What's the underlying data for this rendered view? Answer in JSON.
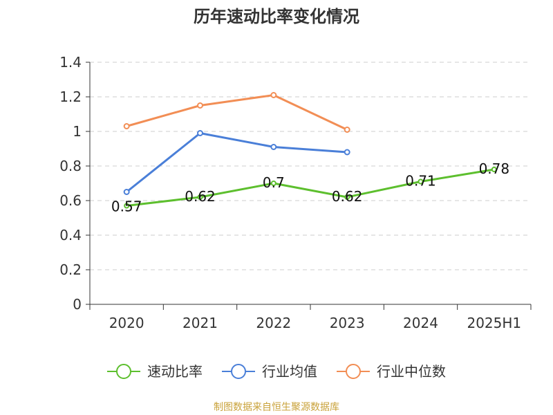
{
  "title": "历年速动比率变化情况",
  "source": "制图数据来自恒生聚源数据库",
  "colors": {
    "axis": "#333333",
    "grid": "#cccccc",
    "text": "#333333",
    "label": "#111111",
    "source": "#c9a23a"
  },
  "chart_data": {
    "type": "line",
    "title": "历年速动比率变化情况",
    "categories": [
      "2020",
      "2021",
      "2022",
      "2023",
      "2024",
      "2025H1"
    ],
    "ylim": [
      0,
      1.4
    ],
    "yticks": [
      "0",
      "0.2",
      "0.4",
      "0.6",
      "0.8",
      "1",
      "1.2",
      "1.4"
    ],
    "grid": true,
    "legend_position": "bottom",
    "series": [
      {
        "name": "速动比率",
        "color": "#5dbf2e",
        "values": [
          0.57,
          0.62,
          0.7,
          0.62,
          0.71,
          0.78
        ],
        "data_labels": [
          "0.57",
          "0.62",
          "0.7",
          "0.62",
          "0.71",
          "0.78"
        ],
        "marker": "small"
      },
      {
        "name": "行业均值",
        "color": "#4a7fd8",
        "values": [
          0.65,
          0.99,
          0.91,
          0.88,
          null,
          null
        ],
        "marker": "circle"
      },
      {
        "name": "行业中位数",
        "color": "#f28e55",
        "values": [
          1.03,
          1.15,
          1.21,
          1.01,
          null,
          null
        ],
        "marker": "circle"
      }
    ]
  }
}
